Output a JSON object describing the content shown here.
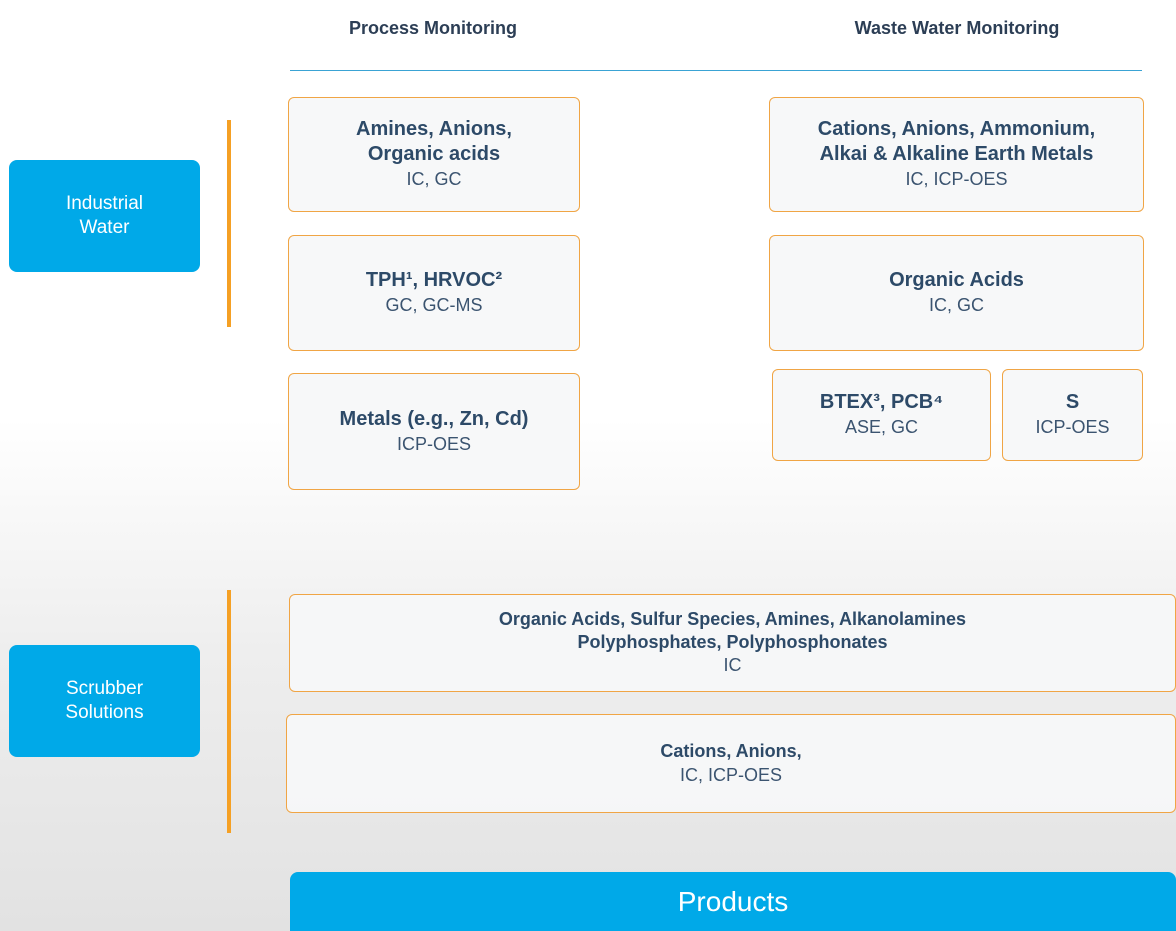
{
  "columns": [
    "Process Monitoring",
    "Waste Water Monitoring"
  ],
  "categories": [
    "Industrial Water",
    "Scrubber Solutions"
  ],
  "boxes": [
    {
      "title": [
        "Amines, Anions,",
        "Organic acids"
      ],
      "methods": "IC, GC"
    },
    {
      "title": [
        "TPH¹, HRVOC²"
      ],
      "methods": "GC, GC-MS"
    },
    {
      "title": [
        "Metals (e.g., Zn, Cd)"
      ],
      "methods": "ICP-OES"
    },
    {
      "title": [
        "Cations, Anions, Ammonium,",
        "Alkai & Alkaline Earth Metals"
      ],
      "methods": "IC, ICP-OES"
    },
    {
      "title": [
        "Organic Acids"
      ],
      "methods": "IC, GC"
    },
    {
      "title": [
        "BTEX³, PCB⁴"
      ],
      "methods": "ASE, GC"
    },
    {
      "title": [
        "S"
      ],
      "methods": "ICP-OES"
    },
    {
      "title": [
        "Organic Acids, Sulfur Species, Amines, Alkanolamines",
        "Polyphosphates, Polyphosphonates"
      ],
      "methods": "IC"
    },
    {
      "title": [
        "Cations, Anions,"
      ],
      "methods": "IC, ICP-OES"
    }
  ],
  "button": "Products"
}
